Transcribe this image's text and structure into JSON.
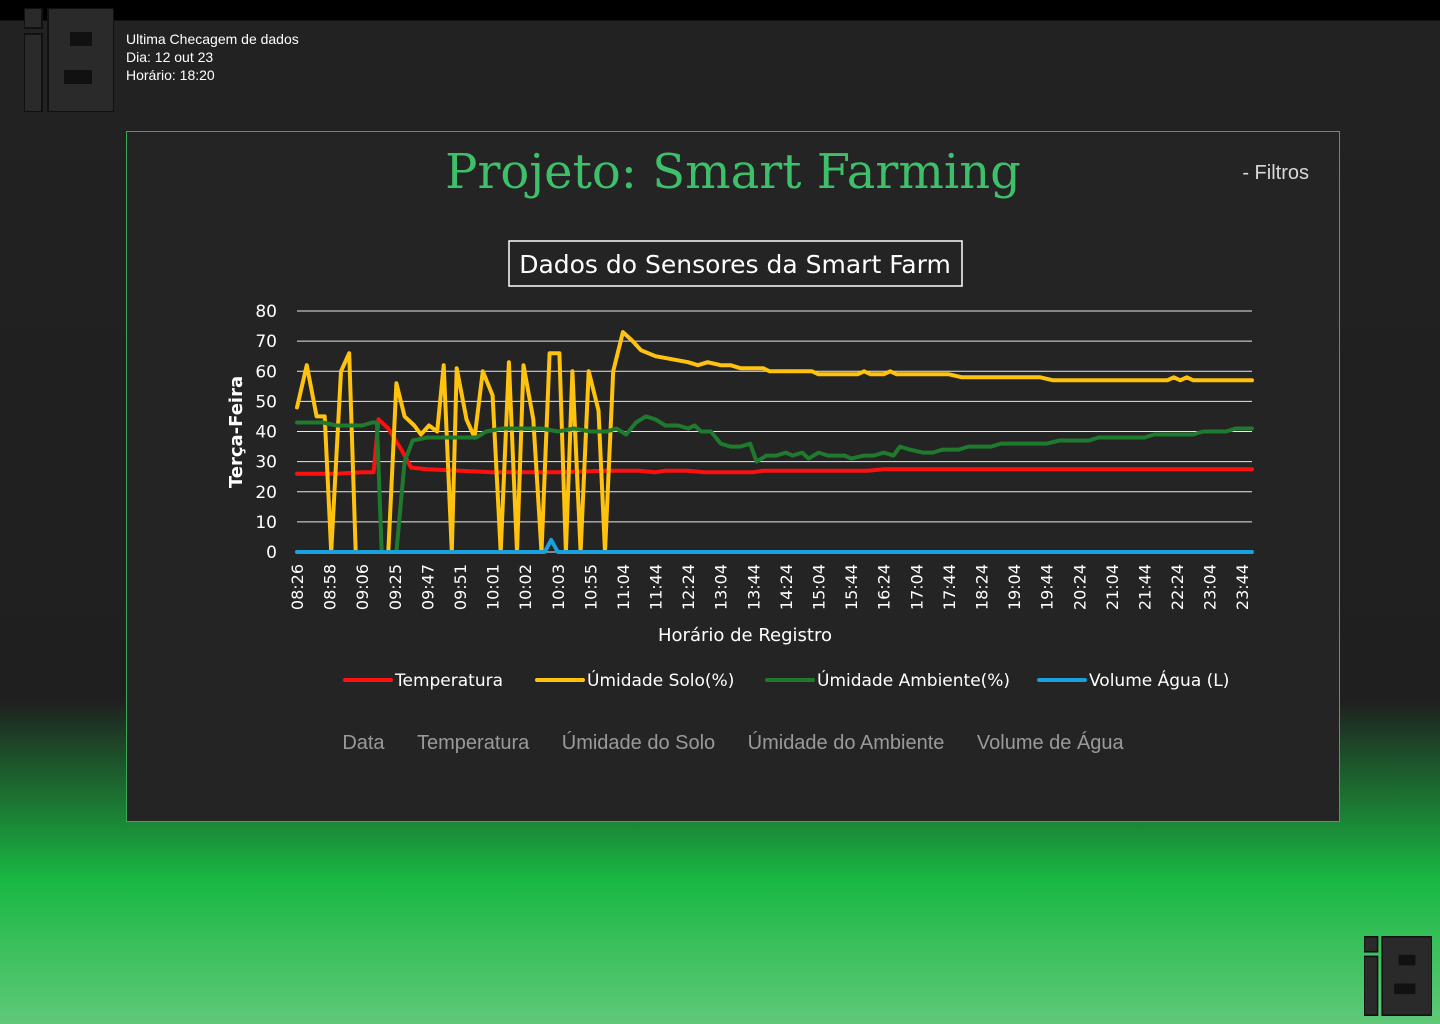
{
  "check": {
    "title": "Ultima Checagem de dados",
    "day": "Dia: 12 out 23",
    "time": "Horário: 18:20"
  },
  "project": {
    "title": "Projeto: Smart Farming"
  },
  "filters": {
    "label": "- Filtros"
  },
  "tabs": [
    "Data",
    "Temperatura",
    "Úmidade do Solo",
    "Úmidade do Ambiente",
    "Volume de Água"
  ],
  "colors": {
    "temperature": "#ff1010",
    "soil": "#ffc20e",
    "ambient": "#1f7a2e",
    "water": "#1aa0dc",
    "title_green": "#3ec06b"
  },
  "chart_data": {
    "type": "line",
    "title": "Dados do Sensores da Smart Farm",
    "xlabel": "Horário de Registro",
    "ylabel": "Terça-Feira",
    "ylim": [
      0,
      80
    ],
    "yticks": [
      0,
      10,
      20,
      30,
      40,
      50,
      60,
      70,
      80
    ],
    "grid": true,
    "legend_position": "bottom",
    "x_tick_labels": [
      "08:26",
      "08:58",
      "09:06",
      "09:25",
      "09:47",
      "09:51",
      "10:01",
      "10:02",
      "10:03",
      "10:55",
      "11:04",
      "11:44",
      "12:24",
      "13:04",
      "13:44",
      "14:24",
      "15:04",
      "15:44",
      "16:24",
      "17:04",
      "17:44",
      "18:24",
      "19:04",
      "19:44",
      "20:24",
      "21:04",
      "21:44",
      "22:24",
      "23:04",
      "23:44"
    ],
    "series": [
      {
        "name": "Temperatura",
        "points": [
          [
            0,
            26
          ],
          [
            0.6,
            26
          ],
          [
            1.2,
            26
          ],
          [
            2,
            26.5
          ],
          [
            2.35,
            26.5
          ],
          [
            2.5,
            44
          ],
          [
            2.8,
            41
          ],
          [
            3.2,
            34
          ],
          [
            3.5,
            28
          ],
          [
            4,
            27.5
          ],
          [
            5,
            27
          ],
          [
            6,
            26.5
          ],
          [
            8,
            26.5
          ],
          [
            9.5,
            27
          ],
          [
            10.5,
            27
          ],
          [
            11,
            26.5
          ],
          [
            11.3,
            27
          ],
          [
            12,
            27
          ],
          [
            12.5,
            26.5
          ],
          [
            13,
            26.5
          ],
          [
            14,
            26.5
          ],
          [
            14.3,
            27
          ],
          [
            17.5,
            27
          ],
          [
            18,
            27.5
          ],
          [
            22,
            27.5
          ],
          [
            26,
            27.5
          ],
          [
            29.3,
            27.5
          ]
        ]
      },
      {
        "name": "Úmidade Solo(%)",
        "points": [
          [
            0,
            48
          ],
          [
            0.3,
            62
          ],
          [
            0.6,
            45
          ],
          [
            0.85,
            45
          ],
          [
            1.05,
            0
          ],
          [
            1.35,
            60
          ],
          [
            1.6,
            66
          ],
          [
            1.8,
            0
          ],
          [
            2.3,
            0
          ],
          [
            2.65,
            0
          ],
          [
            2.8,
            0
          ],
          [
            3.05,
            56
          ],
          [
            3.3,
            45
          ],
          [
            3.6,
            42
          ],
          [
            3.8,
            39
          ],
          [
            4.05,
            42
          ],
          [
            4.3,
            40
          ],
          [
            4.5,
            62
          ],
          [
            4.75,
            0
          ],
          [
            4.9,
            61
          ],
          [
            5.2,
            44
          ],
          [
            5.45,
            38
          ],
          [
            5.7,
            60
          ],
          [
            6,
            52
          ],
          [
            6.25,
            0
          ],
          [
            6.5,
            63
          ],
          [
            6.75,
            0
          ],
          [
            6.95,
            62
          ],
          [
            7.25,
            44
          ],
          [
            7.5,
            0
          ],
          [
            7.75,
            66
          ],
          [
            8.05,
            66
          ],
          [
            8.25,
            0
          ],
          [
            8.45,
            60
          ],
          [
            8.7,
            0
          ],
          [
            8.95,
            60
          ],
          [
            9.25,
            47
          ],
          [
            9.45,
            0
          ],
          [
            9.7,
            60
          ],
          [
            10.0,
            73
          ],
          [
            10.3,
            70
          ],
          [
            10.55,
            67
          ],
          [
            11,
            65
          ],
          [
            11.5,
            64
          ],
          [
            12,
            63
          ],
          [
            12.3,
            62
          ],
          [
            12.6,
            63
          ],
          [
            13,
            62
          ],
          [
            13.3,
            62
          ],
          [
            13.6,
            61
          ],
          [
            14.3,
            61
          ],
          [
            14.5,
            60
          ],
          [
            15.8,
            60
          ],
          [
            16,
            59
          ],
          [
            17.2,
            59
          ],
          [
            17.4,
            60
          ],
          [
            17.6,
            59
          ],
          [
            18,
            59
          ],
          [
            18.2,
            60
          ],
          [
            18.4,
            59
          ],
          [
            20,
            59
          ],
          [
            20.4,
            58
          ],
          [
            22,
            58
          ],
          [
            22.8,
            58
          ],
          [
            23.2,
            57
          ],
          [
            24,
            57
          ],
          [
            26,
            57
          ],
          [
            26.7,
            57
          ],
          [
            26.9,
            58
          ],
          [
            27.1,
            57
          ],
          [
            27.3,
            58
          ],
          [
            27.5,
            57
          ],
          [
            28,
            57
          ],
          [
            29.3,
            57
          ]
        ]
      },
      {
        "name": "Úmidade Ambiente(%)",
        "points": [
          [
            0,
            43
          ],
          [
            0.8,
            43
          ],
          [
            1.2,
            42
          ],
          [
            2,
            42
          ],
          [
            2.3,
            43
          ],
          [
            2.45,
            43
          ],
          [
            2.6,
            0
          ],
          [
            3.05,
            0
          ],
          [
            3.3,
            30
          ],
          [
            3.55,
            37
          ],
          [
            4,
            38
          ],
          [
            5.5,
            38
          ],
          [
            5.8,
            40
          ],
          [
            6.3,
            41
          ],
          [
            7.5,
            41
          ],
          [
            8,
            40
          ],
          [
            8.5,
            41
          ],
          [
            9,
            40
          ],
          [
            9.5,
            40
          ],
          [
            9.8,
            41
          ],
          [
            10.1,
            39
          ],
          [
            10.4,
            43
          ],
          [
            10.7,
            45
          ],
          [
            11,
            44
          ],
          [
            11.3,
            42
          ],
          [
            11.7,
            42
          ],
          [
            12,
            41
          ],
          [
            12.2,
            42
          ],
          [
            12.4,
            40
          ],
          [
            12.7,
            40
          ],
          [
            13,
            36
          ],
          [
            13.3,
            35
          ],
          [
            13.6,
            35
          ],
          [
            13.9,
            36
          ],
          [
            14.1,
            30
          ],
          [
            14.4,
            32
          ],
          [
            14.7,
            32
          ],
          [
            15,
            33
          ],
          [
            15.2,
            32
          ],
          [
            15.5,
            33
          ],
          [
            15.7,
            31
          ],
          [
            16,
            33
          ],
          [
            16.3,
            32
          ],
          [
            16.8,
            32
          ],
          [
            17,
            31
          ],
          [
            17.4,
            32
          ],
          [
            17.7,
            32
          ],
          [
            18,
            33
          ],
          [
            18.3,
            32
          ],
          [
            18.5,
            35
          ],
          [
            18.8,
            34
          ],
          [
            19.2,
            33
          ],
          [
            19.5,
            33
          ],
          [
            19.8,
            34
          ],
          [
            20.3,
            34
          ],
          [
            20.6,
            35
          ],
          [
            21.3,
            35
          ],
          [
            21.6,
            36
          ],
          [
            23,
            36
          ],
          [
            23.4,
            37
          ],
          [
            24.3,
            37
          ],
          [
            24.6,
            38
          ],
          [
            26,
            38
          ],
          [
            26.3,
            39
          ],
          [
            27.5,
            39
          ],
          [
            27.8,
            40
          ],
          [
            28.5,
            40
          ],
          [
            28.8,
            41
          ],
          [
            29.3,
            41
          ]
        ]
      },
      {
        "name": "Volume Água (L)",
        "points": [
          [
            0,
            0
          ],
          [
            7.6,
            0
          ],
          [
            7.8,
            4
          ],
          [
            8.0,
            0
          ],
          [
            29.3,
            0
          ]
        ]
      }
    ]
  }
}
